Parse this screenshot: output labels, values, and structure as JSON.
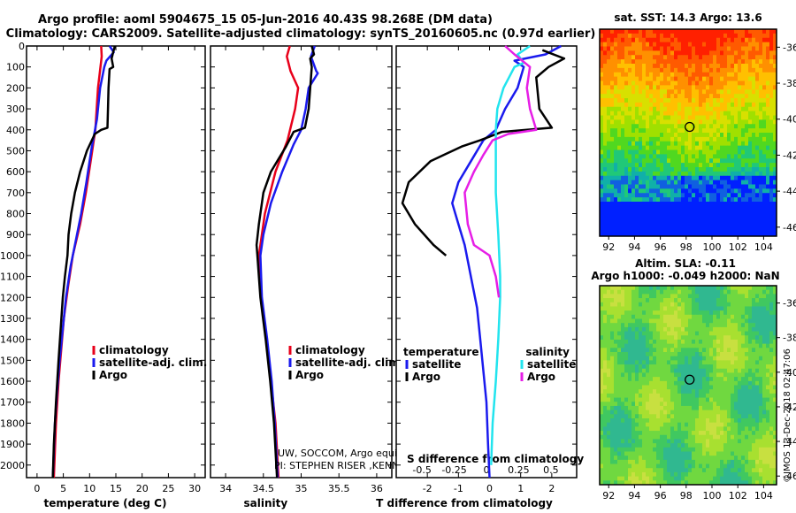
{
  "title_line1": "Argo profile: aoml 5904675_15 05-Jun-2016 40.43S 98.268E (DM data)",
  "title_line2": "Climatology: CARS2009. Satellite-adjusted climatology: synTS_20160605.nc (0.97d earlier)",
  "colors": {
    "climatology": "#e8001a",
    "satellite": "#1a1aee",
    "argo": "#000000",
    "sal_satellite": "#22e4ee",
    "sal_argo": "#e61ee6"
  },
  "chart_data": [
    {
      "type": "line",
      "id": "temperature",
      "xlabel": "temperature (deg C)",
      "xlim": [
        -2,
        32
      ],
      "ylim": [
        0,
        2060
      ],
      "xticks": [
        0,
        5,
        10,
        15,
        20,
        25,
        30
      ],
      "yticks": [
        0,
        100,
        200,
        300,
        400,
        500,
        600,
        700,
        800,
        900,
        1000,
        1100,
        1200,
        1300,
        1400,
        1500,
        1600,
        1700,
        1800,
        1900,
        2000
      ],
      "legend": [
        "climatology",
        "satellite-adj. clim.",
        "Argo"
      ],
      "series": [
        {
          "name": "climatology",
          "color": "#e8001a",
          "points": [
            [
              12.2,
              0
            ],
            [
              12.3,
              50
            ],
            [
              11.6,
              200
            ],
            [
              11.1,
              400
            ],
            [
              10.2,
              550
            ],
            [
              9.3,
              700
            ],
            [
              8.2,
              850
            ],
            [
              6.8,
              1000
            ],
            [
              5.9,
              1150
            ],
            [
              5.1,
              1300
            ],
            [
              4.6,
              1450
            ],
            [
              4.1,
              1600
            ],
            [
              3.6,
              1800
            ],
            [
              3.2,
              2060
            ]
          ]
        },
        {
          "name": "satellite-adj. clim.",
          "color": "#1a1aee",
          "points": [
            [
              13.8,
              0
            ],
            [
              14.6,
              30
            ],
            [
              13.2,
              70
            ],
            [
              12.8,
              100
            ],
            [
              12.0,
              200
            ],
            [
              11.4,
              350
            ],
            [
              10.3,
              500
            ],
            [
              9.4,
              650
            ],
            [
              8.4,
              800
            ],
            [
              7.2,
              950
            ],
            [
              6.4,
              1050
            ],
            [
              5.5,
              1200
            ],
            [
              4.9,
              1350
            ],
            [
              4.3,
              1500
            ],
            [
              3.8,
              1650
            ],
            [
              3.4,
              1800
            ],
            [
              3.1,
              2000
            ],
            [
              3.0,
              2060
            ]
          ]
        },
        {
          "name": "Argo",
          "color": "#000000",
          "points": [
            [
              14.8,
              0
            ],
            [
              14.2,
              60
            ],
            [
              14.5,
              100
            ],
            [
              13.8,
              110
            ],
            [
              13.6,
              200
            ],
            [
              13.5,
              300
            ],
            [
              13.4,
              390
            ],
            [
              12.2,
              400
            ],
            [
              11.0,
              420
            ],
            [
              9.5,
              500
            ],
            [
              8.2,
              600
            ],
            [
              7.2,
              700
            ],
            [
              6.5,
              800
            ],
            [
              6.0,
              900
            ],
            [
              5.8,
              1000
            ],
            [
              5.3,
              1100
            ],
            [
              4.9,
              1200
            ],
            [
              4.5,
              1350
            ],
            [
              4.1,
              1500
            ],
            [
              3.6,
              1700
            ],
            [
              3.2,
              1900
            ],
            [
              3.0,
              2060
            ]
          ]
        }
      ]
    },
    {
      "type": "line",
      "id": "salinity",
      "xlabel": "salinity",
      "xlim": [
        33.8,
        36.2
      ],
      "ylim": [
        0,
        2060
      ],
      "xticks": [
        34,
        34.5,
        35,
        35.5,
        36
      ],
      "xticklabels": [
        "34",
        "34.5",
        "35",
        "35.5",
        "36"
      ],
      "legend": [
        "climatology",
        "satellite-adj. clim.",
        "Argo"
      ],
      "series": [
        {
          "name": "climatology",
          "color": "#e8001a",
          "points": [
            [
              34.85,
              0
            ],
            [
              34.81,
              50
            ],
            [
              34.86,
              120
            ],
            [
              34.96,
              200
            ],
            [
              34.92,
              300
            ],
            [
              34.82,
              450
            ],
            [
              34.66,
              600
            ],
            [
              34.52,
              800
            ],
            [
              34.46,
              950
            ],
            [
              34.44,
              1000
            ],
            [
              34.47,
              1200
            ],
            [
              34.54,
              1400
            ],
            [
              34.6,
              1600
            ],
            [
              34.66,
              1800
            ],
            [
              34.7,
              2060
            ]
          ]
        },
        {
          "name": "satellite-adj. clim.",
          "color": "#1a1aee",
          "points": [
            [
              35.18,
              0
            ],
            [
              35.13,
              50
            ],
            [
              35.2,
              120
            ],
            [
              35.22,
              130
            ],
            [
              35.1,
              200
            ],
            [
              35.06,
              300
            ],
            [
              35.0,
              400
            ],
            [
              34.9,
              470
            ],
            [
              34.75,
              600
            ],
            [
              34.6,
              750
            ],
            [
              34.5,
              900
            ],
            [
              34.46,
              1000
            ],
            [
              34.48,
              1200
            ],
            [
              34.55,
              1400
            ],
            [
              34.61,
              1600
            ],
            [
              34.65,
              1800
            ],
            [
              34.69,
              2060
            ]
          ]
        },
        {
          "name": "Argo",
          "color": "#000000",
          "points": [
            [
              35.14,
              0
            ],
            [
              35.17,
              40
            ],
            [
              35.12,
              60
            ],
            [
              35.14,
              100
            ],
            [
              35.1,
              300
            ],
            [
              35.05,
              390
            ],
            [
              34.9,
              410
            ],
            [
              34.8,
              480
            ],
            [
              34.6,
              600
            ],
            [
              34.5,
              700
            ],
            [
              34.44,
              850
            ],
            [
              34.41,
              950
            ],
            [
              34.42,
              1000
            ],
            [
              34.46,
              1200
            ],
            [
              34.53,
              1400
            ],
            [
              34.59,
              1600
            ],
            [
              34.64,
              1800
            ],
            [
              34.68,
              2060
            ]
          ]
        }
      ]
    },
    {
      "type": "line",
      "id": "difference",
      "xlabel": "T difference from climatology",
      "xlabel2": "S difference from climatology",
      "xlim": [
        -3,
        2.8
      ],
      "ylim": [
        0,
        2060
      ],
      "xticks": [
        -2,
        -1,
        0,
        1,
        2
      ],
      "xticks2": [
        -0.5,
        -0.25,
        0,
        0.25,
        0.5
      ],
      "xticklabels2": [
        "-0.5",
        "-0.25",
        "0",
        "0.25",
        "0.5"
      ],
      "legend_temperature_title": "temperature",
      "legend_salinity_title": "salinity",
      "legend": [
        "satellite",
        "Argo",
        "satellite",
        "Argo"
      ],
      "series": [
        {
          "name": "T satellite",
          "color": "#1a1aee",
          "points": [
            [
              2.3,
              0
            ],
            [
              1.8,
              40
            ],
            [
              0.8,
              70
            ],
            [
              1.1,
              100
            ],
            [
              0.9,
              200
            ],
            [
              0.5,
              300
            ],
            [
              0.2,
              400
            ],
            [
              -0.2,
              450
            ],
            [
              -0.6,
              550
            ],
            [
              -1.0,
              650
            ],
            [
              -1.2,
              750
            ],
            [
              -1.0,
              850
            ],
            [
              -0.8,
              950
            ],
            [
              -0.6,
              1100
            ],
            [
              -0.4,
              1250
            ],
            [
              -0.3,
              1400
            ],
            [
              -0.2,
              1550
            ],
            [
              -0.1,
              1700
            ],
            [
              -0.05,
              1900
            ],
            [
              0,
              2060
            ]
          ]
        },
        {
          "name": "T Argo",
          "color": "#000000",
          "points": [
            [
              1.7,
              20
            ],
            [
              2.4,
              60
            ],
            [
              1.9,
              100
            ],
            [
              1.5,
              150
            ],
            [
              1.6,
              300
            ],
            [
              2.0,
              390
            ],
            [
              0.4,
              410
            ],
            [
              -0.3,
              450
            ],
            [
              -0.9,
              480
            ],
            [
              -1.9,
              550
            ],
            [
              -2.6,
              650
            ],
            [
              -2.8,
              750
            ],
            [
              -2.4,
              850
            ],
            [
              -1.8,
              950
            ],
            [
              -1.4,
              1000
            ]
          ]
        },
        {
          "name": "S satellite",
          "color": "#22e4ee",
          "points": [
            [
              1.3,
              0
            ],
            [
              0.9,
              40
            ],
            [
              1.1,
              80
            ],
            [
              0.8,
              100
            ],
            [
              0.45,
              200
            ],
            [
              0.25,
              300
            ],
            [
              0.2,
              400
            ],
            [
              0.2,
              500
            ],
            [
              0.2,
              700
            ],
            [
              0.28,
              900
            ],
            [
              0.34,
              1100
            ],
            [
              0.34,
              1200
            ],
            [
              0.28,
              1400
            ],
            [
              0.2,
              1600
            ],
            [
              0.1,
              1800
            ],
            [
              0.05,
              2000
            ]
          ]
        },
        {
          "name": "S Argo",
          "color": "#e61ee6",
          "points": [
            [
              0.5,
              0
            ],
            [
              0.8,
              40
            ],
            [
              1.3,
              100
            ],
            [
              1.2,
              200
            ],
            [
              1.3,
              300
            ],
            [
              1.5,
              400
            ],
            [
              0.6,
              420
            ],
            [
              0.1,
              450
            ],
            [
              -0.2,
              520
            ],
            [
              -0.5,
              600
            ],
            [
              -0.8,
              700
            ],
            [
              -0.7,
              850
            ],
            [
              -0.5,
              950
            ],
            [
              0.0,
              1000
            ],
            [
              0.2,
              1100
            ],
            [
              0.3,
              1200
            ]
          ]
        }
      ]
    }
  ],
  "watermark_line1": "UW, SOCCOM, Argo equivalent",
  "watermark_line2": "PI: STEPHEN RISER ,KENNETH JOHNSON",
  "map_sst": {
    "title": "sat. SST: 14.3 Argo: 13.6",
    "lat_ticks": [
      -36,
      -38,
      -40,
      -42,
      -44,
      -46
    ],
    "lat_labels": [
      "-36",
      "-38",
      "-40",
      "-42",
      "-44",
      "-46"
    ],
    "lon_ticks": [
      92,
      94,
      96,
      98,
      100,
      102,
      104
    ],
    "lon_labels": [
      "92",
      "94",
      "96",
      "98",
      "100",
      "102",
      "104"
    ],
    "marker_lon": 98.268,
    "marker_lat": -40.43
  },
  "map_sla": {
    "title1": "Altim. SLA: -0.11",
    "title2": "Argo h1000: -0.049 h2000: NaN",
    "lat_ticks": [
      -36,
      -38,
      -40,
      -42,
      -44,
      -46
    ],
    "lat_labels": [
      "-36",
      "-38",
      "-40",
      "-42",
      "-44",
      "-46"
    ],
    "lon_ticks": [
      92,
      94,
      96,
      98,
      100,
      102,
      104
    ],
    "lon_labels": [
      "92",
      "94",
      "96",
      "98",
      "100",
      "102",
      "104"
    ],
    "marker_lon": 98.268,
    "marker_lat": -40.43
  },
  "side_label": "©IMOS 13-Dec-2018 02:47:06"
}
